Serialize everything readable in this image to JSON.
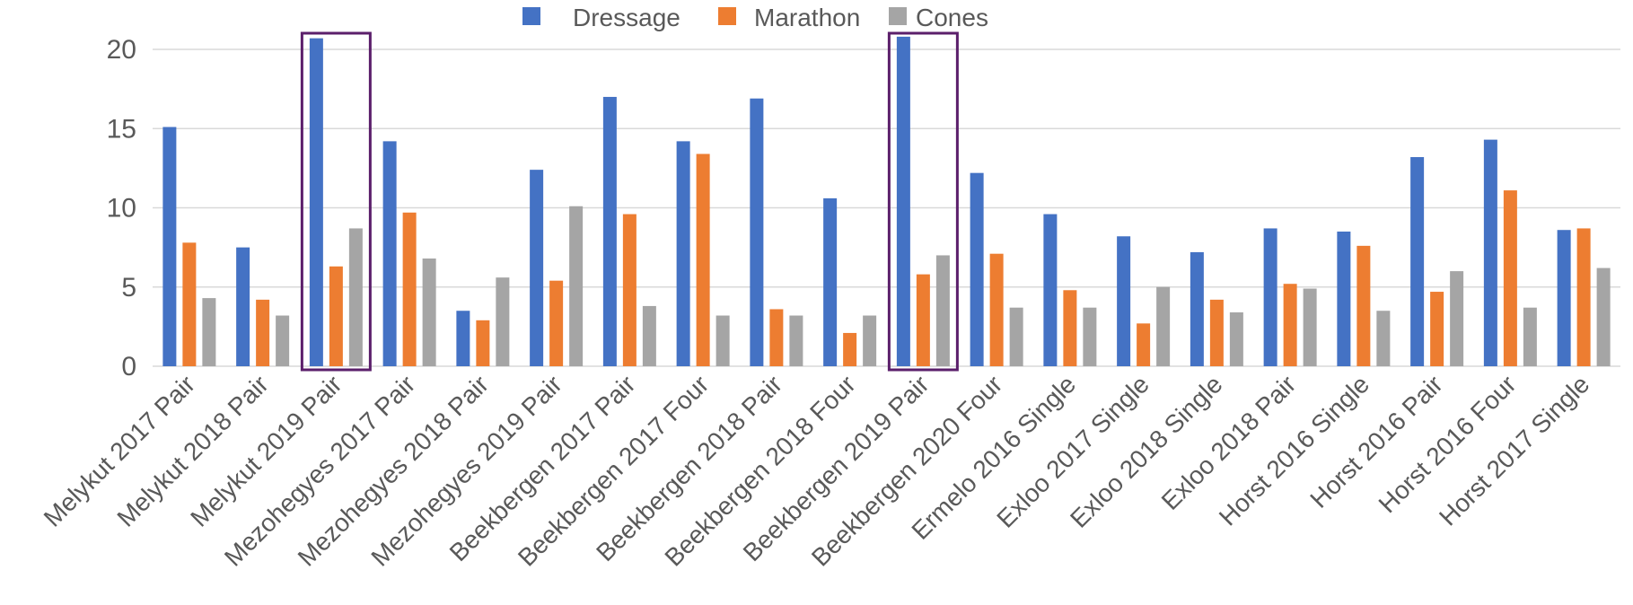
{
  "chart_data": {
    "type": "bar",
    "title": "",
    "xlabel": "",
    "ylabel": "",
    "ylim": [
      0,
      22
    ],
    "yticks": [
      0,
      5,
      10,
      15,
      20
    ],
    "grid": true,
    "legend_position": "top-center",
    "categories": [
      "Melykut 2017 Pair",
      "Melykut 2018 Pair",
      "Melykut 2019 Pair",
      "Mezohegyes 2017 Pair",
      "Mezohegyes 2018 Pair",
      "Mezohegyes 2019 Pair",
      "Beekbergen 2017 Pair",
      "Beekbergen 2017 Four",
      "Beekbergen 2018 Pair",
      "Beekbergen 2018 Four",
      "Beekbergen 2019 Pair",
      "Beekbergen 2020 Four",
      "Ermelo 2016 Single",
      "Exloo 2017 Single",
      "Exloo 2018 Single",
      "Exloo 2018 Pair",
      "Horst 2016 Single",
      "Horst 2016 Pair",
      "Horst 2016 Four",
      "Horst 2017 Single"
    ],
    "series": [
      {
        "name": "Dressage",
        "color": "#4472C4",
        "values": [
          15.1,
          7.5,
          20.7,
          14.2,
          3.5,
          12.4,
          17.0,
          14.2,
          16.9,
          10.6,
          20.8,
          12.2,
          9.6,
          8.2,
          7.2,
          8.7,
          8.5,
          13.2,
          14.3,
          8.6
        ]
      },
      {
        "name": "Marathon",
        "color": "#ED7D31",
        "values": [
          7.8,
          4.2,
          6.3,
          9.7,
          2.9,
          5.4,
          9.6,
          13.4,
          3.6,
          2.1,
          5.8,
          7.1,
          4.8,
          2.7,
          4.2,
          5.2,
          7.6,
          4.7,
          11.1,
          8.7
        ]
      },
      {
        "name": "Cones",
        "color": "#A5A5A5",
        "values": [
          4.3,
          3.2,
          8.7,
          6.8,
          5.6,
          10.1,
          3.8,
          3.2,
          3.2,
          3.2,
          7.0,
          3.7,
          3.7,
          5.0,
          3.4,
          4.9,
          3.5,
          6.0,
          3.7,
          6.2
        ]
      }
    ],
    "highlighted_categories": [
      2,
      10
    ],
    "highlight_color": "#5B1F6B"
  }
}
